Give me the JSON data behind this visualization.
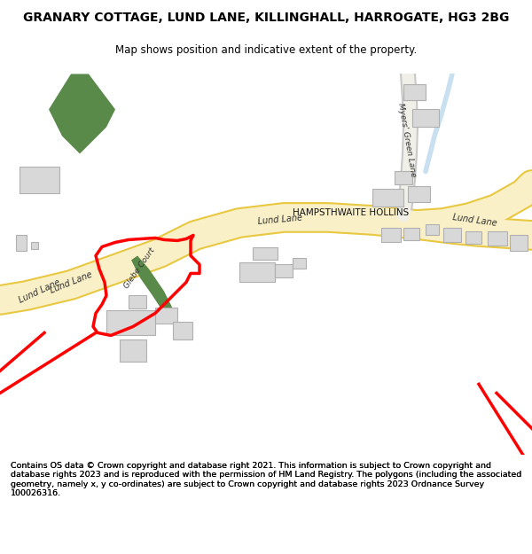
{
  "title": "GRANARY COTTAGE, LUND LANE, KILLINGHALL, HARROGATE, HG3 2BG",
  "subtitle": "Map shows position and indicative extent of the property.",
  "footer": "Contains OS data © Crown copyright and database right 2021. This information is subject to Crown copyright and database rights 2023 and is reproduced with the permission of HM Land Registry. The polygons (including the associated geometry, namely x, y co-ordinates) are subject to Crown copyright and database rights 2023 Ordnance Survey 100026316.",
  "background_color": "#ffffff",
  "map_bg": "#f8f8f8",
  "road_fill": "#faf0c8",
  "road_edge": "#e8c840",
  "red_boundary": "#ff0000",
  "green_fill": "#5a8a4a",
  "building_fill": "#d8d8d8",
  "building_edge": "#b0b0b0",
  "water_color": "#c8e0f0",
  "text_color": "#333333",
  "road_label_color": "#333333"
}
